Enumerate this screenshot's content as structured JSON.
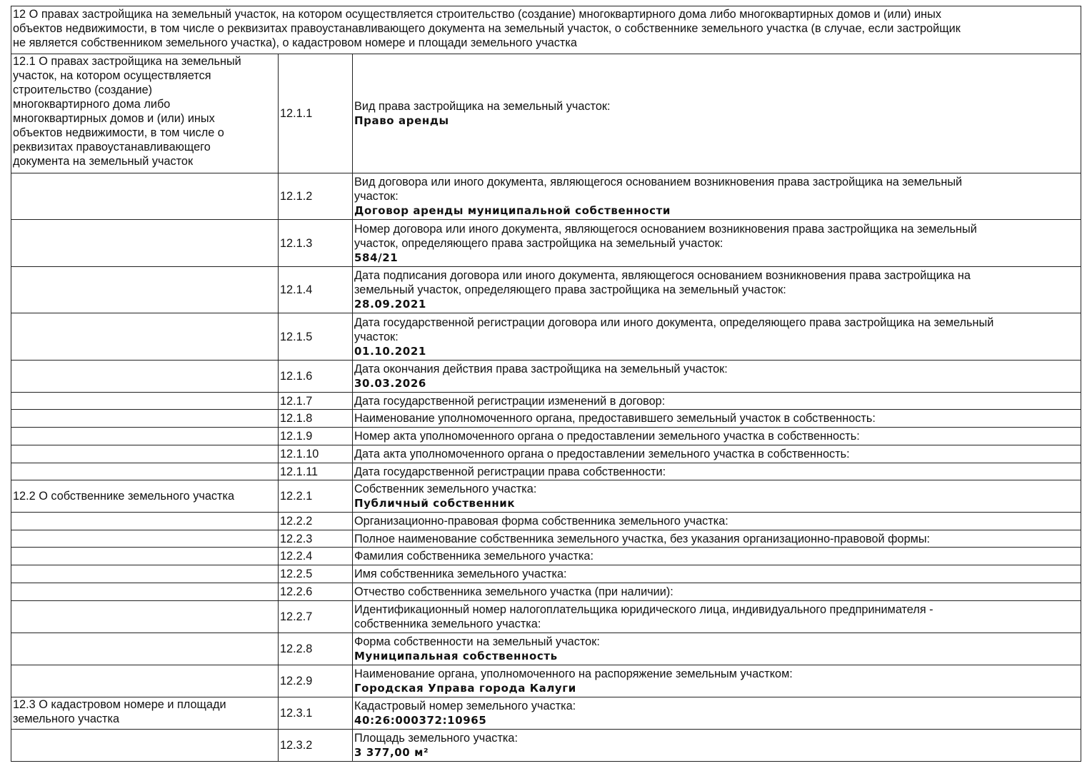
{
  "header": "12 О правах застройщика на земельный участок, на котором осуществляется строительство (создание) многоквартирного дома либо многоквартирных домов и (или) иных\nобъектов недвижимости, в том числе о реквизитах правоустанавливающего документа на земельный участок, о собственнике земельного участка (в случае, если застройщик\nне является собственником земельного участка), о кадастровом номере и площади земельного участка",
  "rows": [
    {
      "section": "12.1 О правах застройщика на земельный\nучасток, на котором осуществляется\nстроительство (создание)\nмногоквартирного дома либо\nмногоквартирных домов и (или) иных\nобъектов недвижимости, в том числе о\nреквизитах правоустанавливающего\nдокумента на земельный участок",
      "num": "12.1.1",
      "label": "Вид права застройщика на земельный участок:",
      "value": "Право аренды"
    },
    {
      "section": "",
      "num": "12.1.2",
      "label": "Вид договора или иного документа, являющегося основанием возникновения права застройщика на земельный\nучасток:",
      "value": "Договор аренды муниципальной собственности"
    },
    {
      "section": "",
      "num": "12.1.3",
      "label": "Номер договора или иного документа, являющегося основанием возникновения права застройщика на земельный\nучасток, определяющего права застройщика на земельный участок:",
      "value": "584/21"
    },
    {
      "section": "",
      "num": "12.1.4",
      "label": "Дата подписания договора или иного документа, являющегося основанием возникновения права застройщика на\nземельный участок, определяющего права застройщика на земельный участок:",
      "value": "28.09.2021"
    },
    {
      "section": "",
      "num": "12.1.5",
      "label": "Дата государственной регистрации договора или иного документа, определяющего права застройщика на земельный\nучасток:",
      "value": "01.10.2021"
    },
    {
      "section": "",
      "num": "12.1.6",
      "label": "Дата окончания действия права застройщика на земельный участок:",
      "value": "30.03.2026"
    },
    {
      "section": "",
      "num": "12.1.7",
      "label": "Дата государственной регистрации изменений в договор:",
      "value": ""
    },
    {
      "section": "",
      "num": "12.1.8",
      "label": "Наименование уполномоченного органа, предоставившего земельный участок в собственность:",
      "value": ""
    },
    {
      "section": "",
      "num": "12.1.9",
      "label": "Номер акта уполномоченного органа о предоставлении земельного участка в собственность:",
      "value": ""
    },
    {
      "section": "",
      "num": "12.1.10",
      "label": "Дата акта уполномоченного органа о предоставлении земельного участка в собственность:",
      "value": ""
    },
    {
      "section": "",
      "num": "12.1.11",
      "label": "Дата государственной регистрации права собственности:",
      "value": ""
    },
    {
      "section": "12.2 О собственнике земельного участка",
      "num": "12.2.1",
      "label": "Собственник земельного участка:",
      "value": "Публичный собственник"
    },
    {
      "section": "",
      "num": "12.2.2",
      "label": "Организационно-правовая форма собственника земельного участка:",
      "value": ""
    },
    {
      "section": "",
      "num": "12.2.3",
      "label": "Полное наименование собственника земельного участка, без указания организационно-правовой формы:",
      "value": ""
    },
    {
      "section": "",
      "num": "12.2.4",
      "label": "Фамилия собственника земельного участка:",
      "value": ""
    },
    {
      "section": "",
      "num": "12.2.5",
      "label": "Имя собственника земельного участка:",
      "value": ""
    },
    {
      "section": "",
      "num": "12.2.6",
      "label": "Отчество собственника земельного участка (при наличии):",
      "value": ""
    },
    {
      "section": "",
      "num": "12.2.7",
      "label": "Идентификационный номер налогоплательщика юридического лица, индивидуального предпринимателя -\nсобственника земельного участка:",
      "value": ""
    },
    {
      "section": "",
      "num": "12.2.8",
      "label": "Форма собственности на земельный участок:",
      "value": "Муниципальная собственность"
    },
    {
      "section": "",
      "num": "12.2.9",
      "label": "Наименование органа, уполномоченного на распоряжение земельным участком:",
      "value": "Городская Управа города Калуги"
    },
    {
      "section": "12.3 О кадастровом номере и площади\nземельного участка",
      "num": "12.3.1",
      "label": "Кадастровый номер земельного участка:",
      "value": "40:26:000372:10965"
    },
    {
      "section": "",
      "num": "12.3.2",
      "label": "Площадь земельного участка:",
      "value": "3 377,00 м²"
    }
  ]
}
